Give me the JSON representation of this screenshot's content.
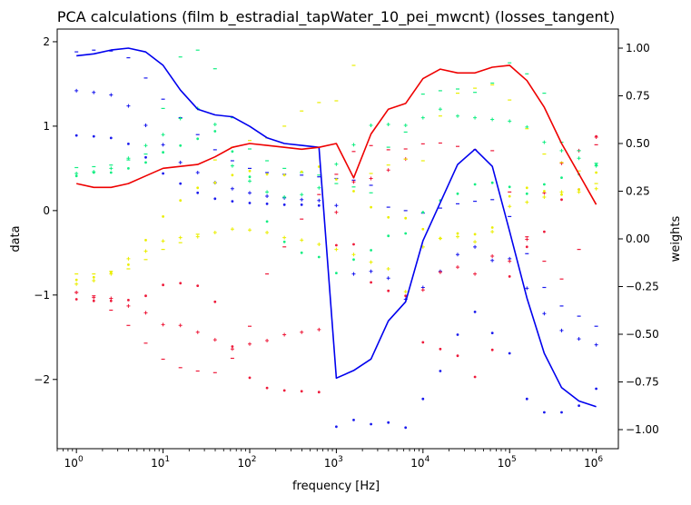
{
  "chart_data": {
    "type": "line",
    "title": "PCA calculations (film b_estradial_tapWater_10_pei_mwcnt) (losses_tangent)",
    "xlabel": "frequency [Hz]",
    "ylabel_left": "data",
    "ylabel_right": "weights",
    "xscale": "log",
    "xlim": [
      0.6,
      1800000
    ],
    "ylim_left": [
      -2.82,
      2.15
    ],
    "ylim_right": [
      -1.1,
      1.1
    ],
    "x_ticks": [
      {
        "value": 1,
        "base": "10",
        "exp": "0"
      },
      {
        "value": 10,
        "base": "10",
        "exp": "1"
      },
      {
        "value": 100,
        "base": "10",
        "exp": "2"
      },
      {
        "value": 1000,
        "base": "10",
        "exp": "3"
      },
      {
        "value": 10000,
        "base": "10",
        "exp": "4"
      },
      {
        "value": 100000,
        "base": "10",
        "exp": "5"
      },
      {
        "value": 1000000,
        "base": "10",
        "exp": "6"
      }
    ],
    "y_ticks_left": [
      {
        "value": 2,
        "label": "2"
      },
      {
        "value": 1,
        "label": "1"
      },
      {
        "value": 0,
        "label": "0"
      },
      {
        "value": -1,
        "label": "−1"
      },
      {
        "value": -2,
        "label": "−2"
      }
    ],
    "y_ticks_right": [
      {
        "value": 1.0,
        "label": "1.00"
      },
      {
        "value": 0.75,
        "label": "0.75"
      },
      {
        "value": 0.5,
        "label": "0.50"
      },
      {
        "value": 0.25,
        "label": "0.25"
      },
      {
        "value": 0.0,
        "label": "0.00"
      },
      {
        "value": -0.25,
        "label": "−0.25"
      },
      {
        "value": -0.5,
        "label": "−0.50"
      },
      {
        "value": -0.75,
        "label": "−0.75"
      },
      {
        "value": -1.0,
        "label": "−1.00"
      }
    ],
    "x": [
      1,
      1.585,
      2.512,
      3.981,
      6.31,
      10,
      15.85,
      25.12,
      39.81,
      63.1,
      100,
      158.5,
      251.2,
      398.1,
      631,
      1000,
      1585,
      2512,
      3981,
      6310,
      10000,
      15850,
      25120,
      39810,
      63100,
      100000,
      158500,
      251200,
      398100,
      631000,
      1000000
    ],
    "lines": [
      {
        "axis": "right",
        "color": "#0000ee",
        "values": [
          0.96,
          0.97,
          0.99,
          1.0,
          0.98,
          0.91,
          0.78,
          0.68,
          0.65,
          0.64,
          0.59,
          0.53,
          0.5,
          0.49,
          0.48,
          -0.73,
          -0.69,
          -0.63,
          -0.43,
          -0.33,
          -0.01,
          0.19,
          0.39,
          0.47,
          0.38,
          0.04,
          -0.31,
          -0.6,
          -0.78,
          -0.85,
          -0.88
        ]
      },
      {
        "axis": "right",
        "color": "#ee0000",
        "values": [
          0.29,
          0.27,
          0.27,
          0.29,
          0.33,
          0.37,
          0.38,
          0.39,
          0.43,
          0.48,
          0.5,
          0.49,
          0.48,
          0.47,
          0.48,
          0.5,
          0.32,
          0.55,
          0.68,
          0.71,
          0.84,
          0.89,
          0.87,
          0.87,
          0.9,
          0.91,
          0.83,
          0.69,
          0.5,
          0.34,
          0.18
        ]
      }
    ],
    "scatter": [
      {
        "color": "#1a1aee",
        "marker": "dot",
        "values": [
          0.89,
          0.88,
          0.86,
          0.79,
          0.63,
          0.44,
          0.32,
          0.21,
          0.14,
          0.11,
          0.09,
          0.08,
          0.07,
          0.07,
          0.06,
          -2.56,
          -2.48,
          -2.53,
          -2.51,
          -2.57,
          -2.23,
          -1.9,
          -1.47,
          -1.2,
          -1.45,
          -1.69,
          -2.23,
          -2.39,
          -2.39,
          -2.31,
          -2.11
        ]
      },
      {
        "color": "#1a1aee",
        "marker": "plus",
        "values": [
          1.42,
          1.4,
          1.37,
          1.24,
          1.01,
          0.78,
          0.57,
          0.45,
          0.33,
          0.26,
          0.21,
          0.17,
          0.15,
          0.13,
          0.12,
          0.06,
          -0.75,
          -0.72,
          -0.8,
          -1.05,
          -0.91,
          -0.72,
          -0.52,
          -0.43,
          -0.59,
          -0.57,
          -0.92,
          -1.22,
          -1.42,
          -1.52,
          -1.59
        ]
      },
      {
        "color": "#1a1aee",
        "marker": "dash",
        "values": [
          1.88,
          1.9,
          1.89,
          1.81,
          1.57,
          1.32,
          1.1,
          0.9,
          0.72,
          0.59,
          0.5,
          0.45,
          0.43,
          0.42,
          0.4,
          0.38,
          0.36,
          0.3,
          0.04,
          0.0,
          -0.03,
          0.03,
          0.08,
          0.11,
          0.13,
          -0.07,
          -0.51,
          -0.91,
          -1.13,
          -1.25,
          -1.37
        ]
      },
      {
        "color": "#ee1a3a",
        "marker": "dot",
        "values": [
          -1.05,
          -1.07,
          -1.07,
          -1.06,
          -1.01,
          -0.88,
          -0.86,
          -0.89,
          -1.08,
          -1.61,
          -1.98,
          -2.1,
          -2.13,
          -2.14,
          -2.15,
          -0.41,
          -0.4,
          -0.85,
          -0.95,
          -1.01,
          -1.56,
          -1.64,
          -1.72,
          -1.97,
          -1.65,
          -0.78,
          -0.43,
          -0.25,
          0.13,
          0.25,
          0.88
        ]
      },
      {
        "color": "#ee1a3a",
        "marker": "plus",
        "values": [
          -0.97,
          -1.03,
          -1.04,
          -1.13,
          -1.21,
          -1.35,
          -1.36,
          -1.44,
          -1.53,
          -1.64,
          -1.58,
          -1.54,
          -1.47,
          -1.44,
          -1.41,
          -0.02,
          0.34,
          0.38,
          0.48,
          0.61,
          -0.94,
          -0.73,
          -0.67,
          -0.75,
          -0.54,
          -0.6,
          -0.34,
          0.21,
          0.56,
          0.71,
          0.87
        ]
      },
      {
        "color": "#ee1a3a",
        "marker": "dash",
        "values": [
          -0.97,
          -1.01,
          -1.18,
          -1.36,
          -1.57,
          -1.76,
          -1.86,
          -1.9,
          -1.92,
          -1.75,
          -1.37,
          -0.75,
          -0.43,
          -0.1,
          0.19,
          0.43,
          0.7,
          0.77,
          0.72,
          0.73,
          0.79,
          0.8,
          0.76,
          0.72,
          0.71,
          0.22,
          -0.31,
          -0.6,
          -0.81,
          -0.46,
          0.78
        ]
      },
      {
        "color": "#12ee82",
        "marker": "dot",
        "values": [
          0.41,
          0.45,
          0.45,
          0.5,
          0.57,
          0.69,
          0.77,
          0.85,
          0.94,
          0.7,
          0.4,
          -0.13,
          -0.37,
          -0.5,
          -0.55,
          -0.74,
          -0.58,
          -0.47,
          -0.3,
          -0.27,
          -0.02,
          0.12,
          0.2,
          0.31,
          0.33,
          0.28,
          0.2,
          0.31,
          0.39,
          0.43,
          0.54
        ]
      },
      {
        "color": "#12ee82",
        "marker": "plus",
        "values": [
          0.44,
          0.46,
          0.5,
          0.62,
          0.77,
          0.9,
          1.09,
          1.21,
          1.02,
          0.53,
          0.35,
          0.22,
          0.16,
          0.19,
          0.27,
          0.55,
          0.78,
          1.01,
          1.02,
          1.01,
          1.1,
          1.2,
          1.12,
          1.1,
          1.08,
          1.06,
          0.99,
          0.81,
          0.71,
          0.62,
          0.53
        ]
      },
      {
        "color": "#12ee82",
        "marker": "dash",
        "values": [
          0.51,
          0.52,
          0.54,
          0.6,
          0.67,
          1.21,
          1.82,
          1.9,
          1.68,
          1.1,
          0.73,
          0.59,
          0.5,
          0.45,
          0.42,
          0.32,
          0.28,
          0.21,
          0.75,
          0.93,
          1.38,
          1.42,
          1.44,
          1.4,
          1.51,
          1.75,
          1.62,
          1.39,
          0.81,
          0.71,
          0.56
        ]
      },
      {
        "color": "#eaee00",
        "marker": "dot",
        "values": [
          -0.82,
          -0.79,
          -0.73,
          -0.64,
          -0.35,
          -0.07,
          0.12,
          0.27,
          0.33,
          0.42,
          0.47,
          0.43,
          0.42,
          0.46,
          0.52,
          0.37,
          0.23,
          0.04,
          -0.08,
          -0.09,
          -0.22,
          -0.33,
          -0.27,
          -0.28,
          -0.2,
          0.17,
          0.27,
          0.23,
          0.19,
          0.25,
          0.45
        ]
      },
      {
        "color": "#eaee00",
        "marker": "plus",
        "values": [
          -0.87,
          -0.83,
          -0.75,
          -0.57,
          -0.48,
          -0.36,
          -0.32,
          -0.31,
          -0.26,
          -0.22,
          -0.23,
          -0.26,
          -0.32,
          -0.35,
          -0.4,
          -0.46,
          -0.52,
          -0.61,
          -0.69,
          -0.96,
          -0.43,
          -0.33,
          -0.31,
          -0.37,
          -0.25,
          0.05,
          0.1,
          0.16,
          0.22,
          0.22,
          0.26
        ]
      },
      {
        "color": "#eaee00",
        "marker": "dash",
        "values": [
          -0.75,
          -0.75,
          -0.72,
          -0.69,
          -0.58,
          -0.46,
          -0.38,
          -0.28,
          0.6,
          0.75,
          0.83,
          0.86,
          1.0,
          1.18,
          1.28,
          1.3,
          1.72,
          0.44,
          0.54,
          0.61,
          0.59,
          1.12,
          1.39,
          1.45,
          1.49,
          1.31,
          0.97,
          0.67,
          0.57,
          0.47,
          0.32
        ]
      }
    ]
  }
}
